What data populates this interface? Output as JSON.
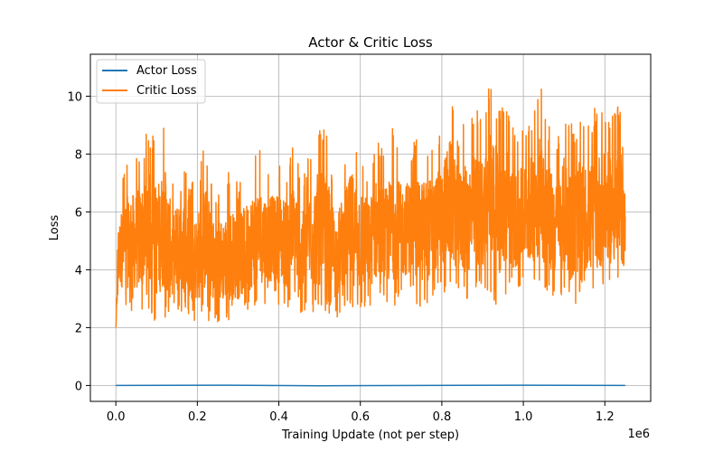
{
  "chart_data": {
    "type": "line",
    "title": "Actor & Critic Loss",
    "xlabel": "Training Update (not per step)",
    "ylabel": "Loss",
    "x_offset_label": "1e6",
    "xlim": [
      -0.0625,
      1.3125
    ],
    "ylim": [
      -0.55,
      11.45
    ],
    "x_ticks": [
      0.0,
      0.2,
      0.4,
      0.6,
      0.8,
      1.0,
      1.2
    ],
    "x_tick_labels": [
      "0.0",
      "0.2",
      "0.4",
      "0.6",
      "0.8",
      "1.0",
      "1.2"
    ],
    "y_ticks": [
      0,
      2,
      4,
      6,
      8,
      10
    ],
    "y_tick_labels": [
      "0",
      "2",
      "4",
      "6",
      "8",
      "10"
    ],
    "grid": true,
    "legend_position": "top-left",
    "series": [
      {
        "name": "Actor Loss",
        "color": "#1f77b4",
        "x": [
          0.0,
          0.25,
          0.5,
          0.75,
          1.0,
          1.25
        ],
        "values": [
          0.0,
          0.01,
          -0.01,
          0.0,
          0.01,
          0.0
        ]
      },
      {
        "name": "Critic Loss",
        "color": "#ff7f0e",
        "x": [
          0.0,
          0.005,
          0.02,
          0.04,
          0.06,
          0.08,
          0.1,
          0.12,
          0.14,
          0.16,
          0.18,
          0.2,
          0.22,
          0.24,
          0.26,
          0.28,
          0.3,
          0.32,
          0.34,
          0.36,
          0.38,
          0.4,
          0.42,
          0.44,
          0.46,
          0.48,
          0.5,
          0.52,
          0.54,
          0.56,
          0.58,
          0.6,
          0.62,
          0.64,
          0.66,
          0.68,
          0.7,
          0.72,
          0.74,
          0.76,
          0.78,
          0.8,
          0.82,
          0.84,
          0.86,
          0.88,
          0.9,
          0.92,
          0.94,
          0.96,
          0.98,
          1.0,
          1.02,
          1.04,
          1.06,
          1.08,
          1.1,
          1.12,
          1.14,
          1.16,
          1.18,
          1.2,
          1.22,
          1.24,
          1.25
        ],
        "values": [
          2.0,
          6.5,
          7.8,
          8.0,
          8.3,
          9.0,
          8.5,
          9.3,
          7.2,
          8.3,
          7.0,
          7.2,
          8.5,
          7.0,
          7.0,
          7.5,
          7.0,
          7.6,
          8.2,
          8.1,
          7.8,
          8.0,
          7.8,
          8.5,
          7.3,
          8.4,
          9.1,
          8.6,
          7.0,
          8.1,
          9.0,
          8.5,
          7.6,
          8.7,
          8.2,
          9.0,
          8.3,
          8.5,
          8.5,
          8.7,
          8.6,
          9.0,
          10.3,
          8.8,
          9.2,
          9.6,
          9.5,
          10.9,
          9.5,
          10.0,
          8.7,
          9.0,
          9.5,
          10.5,
          9.3,
          8.3,
          9.5,
          9.0,
          9.3,
          9.0,
          9.8,
          9.5,
          9.8,
          9.7,
          7.8
        ],
        "band_low": [
          2.0,
          2.9,
          2.7,
          2.5,
          2.4,
          2.6,
          2.1,
          2.3,
          2.0,
          2.5,
          2.3,
          2.2,
          2.3,
          2.1,
          2.2,
          2.2,
          2.3,
          2.5,
          2.6,
          2.8,
          2.9,
          2.8,
          2.6,
          2.8,
          2.3,
          2.5,
          2.4,
          2.4,
          2.3,
          2.7,
          2.5,
          2.3,
          2.7,
          2.7,
          2.6,
          2.7,
          2.9,
          3.1,
          2.7,
          2.6,
          3.1,
          3.3,
          3.0,
          3.3,
          2.8,
          3.1,
          3.0,
          3.0,
          2.7,
          3.1,
          3.2,
          3.5,
          3.3,
          3.3,
          3.0,
          3.1,
          3.1,
          2.5,
          3.1,
          3.0,
          2.7,
          3.5,
          3.1,
          3.2,
          3.4
        ]
      }
    ]
  }
}
